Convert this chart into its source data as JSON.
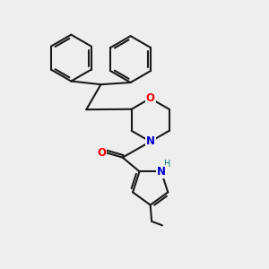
{
  "background_color": "#eeeeee",
  "bond_color": "#1a1a1a",
  "bond_width": 1.5,
  "atom_colors": {
    "O": "#ff0000",
    "N": "#0000cc",
    "NH_color": "#008080",
    "C": "#1a1a1a"
  },
  "figsize": [
    3.0,
    3.0
  ],
  "dpi": 100
}
